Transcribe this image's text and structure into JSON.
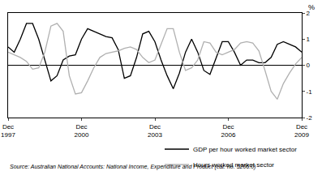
{
  "chart_data": {
    "type": "line",
    "ylabel": "%",
    "categories": [
      "Dec 1997",
      null,
      null,
      null,
      null,
      null,
      null,
      null,
      null,
      null,
      null,
      null,
      "Dec 2000",
      null,
      null,
      null,
      null,
      null,
      null,
      null,
      null,
      null,
      null,
      null,
      "Dec 2003",
      null,
      null,
      null,
      null,
      null,
      null,
      null,
      null,
      null,
      null,
      null,
      "Dec 2006",
      null,
      null,
      null,
      null,
      null,
      null,
      null,
      null,
      null,
      null,
      null,
      "Dec 2009"
    ],
    "series": [
      {
        "name": "GDP per hour worked market sector",
        "color": "#000000",
        "values": [
          0.7,
          0.5,
          1.0,
          1.6,
          1.6,
          1.0,
          0.2,
          -0.6,
          -0.4,
          0.2,
          0.35,
          0.4,
          1.0,
          1.4,
          1.3,
          1.2,
          1.1,
          1.05,
          0.6,
          -0.5,
          -0.4,
          0.3,
          1.2,
          1.3,
          0.9,
          0.2,
          -0.4,
          -0.9,
          -0.3,
          0.5,
          1.0,
          0.5,
          -0.2,
          -0.35,
          0.3,
          0.9,
          0.9,
          0.5,
          0.0,
          0.2,
          0.2,
          0.1,
          0.1,
          0.3,
          0.8,
          0.9,
          0.8,
          0.7,
          0.5
        ]
      },
      {
        "name": "Hours worked market sector",
        "color": "#b0b0b0",
        "values": [
          0.5,
          0.4,
          0.3,
          0.15,
          -0.15,
          -0.1,
          0.5,
          1.5,
          1.6,
          1.3,
          -0.4,
          -1.1,
          -1.05,
          -0.6,
          -0.1,
          0.3,
          0.45,
          0.5,
          0.55,
          0.65,
          0.7,
          0.6,
          0.3,
          0.1,
          0.2,
          0.8,
          1.4,
          1.4,
          0.5,
          -0.2,
          -0.1,
          0.2,
          0.9,
          0.85,
          0.5,
          0.4,
          0.5,
          0.6,
          0.85,
          0.9,
          0.85,
          0.55,
          -0.2,
          -1.0,
          -1.3,
          -0.7,
          -0.3,
          0.05,
          0.3
        ]
      }
    ],
    "ylim": [
      -2,
      2
    ],
    "yticks": [
      -2,
      -1,
      0,
      1,
      2
    ],
    "grid": false,
    "legend": "bottom right",
    "annotations": [
      "Source: Australian National Accounts: National Income, Expenditure and Product (cat. no. 5206.0)"
    ]
  }
}
